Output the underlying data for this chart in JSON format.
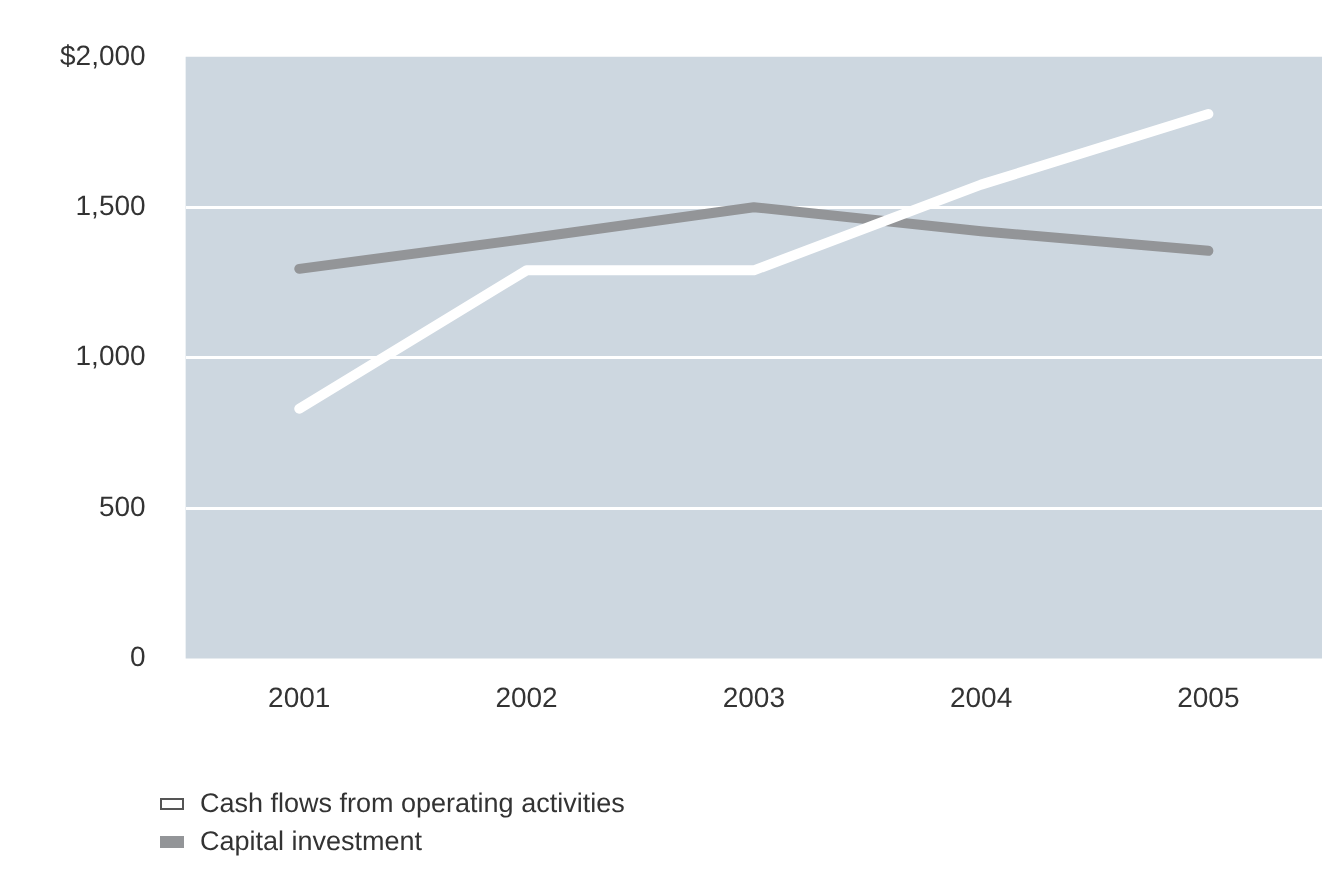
{
  "chart_data": {
    "type": "line",
    "categories": [
      "2001",
      "2002",
      "2003",
      "2004",
      "2005"
    ],
    "series": [
      {
        "name": "Cash flows from operating activities",
        "color": "#ffffff",
        "values": [
          830,
          1290,
          1290,
          1575,
          1810
        ]
      },
      {
        "name": "Capital investment",
        "color": "#939598",
        "values": [
          1295,
          1395,
          1500,
          1420,
          1355
        ]
      }
    ],
    "ylim": [
      0,
      2000
    ],
    "yticks": [
      0,
      500,
      {
        "value": 1000,
        "label": "1,000"
      },
      {
        "value": 1500,
        "label": "1,500"
      },
      {
        "value": 2000,
        "label": "$2,000"
      }
    ],
    "grid": "y",
    "legend": "bottom",
    "marker": "none",
    "line_style": "solid"
  }
}
